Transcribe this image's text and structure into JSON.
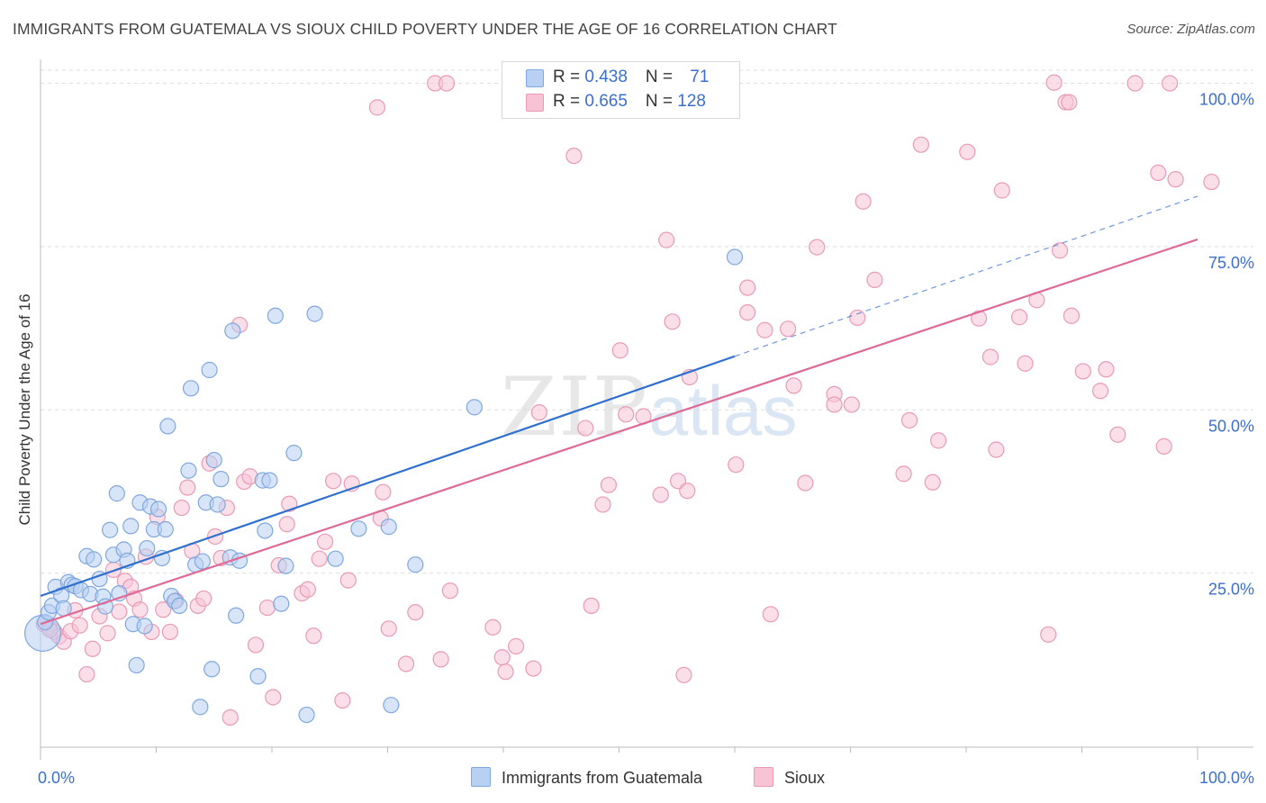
{
  "title": "IMMIGRANTS FROM GUATEMALA VS SIOUX CHILD POVERTY UNDER THE AGE OF 16 CORRELATION CHART",
  "source": "Source: ZipAtlas.com",
  "watermark": {
    "part1": "ZIP",
    "part2": "atlas"
  },
  "legend": {
    "rows": [
      {
        "r_label": "R = ",
        "r_value": "0.438",
        "n_label": "N = ",
        "n_value": "71"
      },
      {
        "r_label": "R = ",
        "r_value": "0.665",
        "n_label": "N = ",
        "n_value": "128"
      }
    ]
  },
  "colors": {
    "series1_fill": "#b8d0f2",
    "series1_stroke": "#7fa8e0",
    "series1_line": "#2f6fcf",
    "series2_fill": "#f8c4d5",
    "series2_stroke": "#e99ab4",
    "series2_line": "#e06a96",
    "tick_label": "#3a6fd0",
    "grid": "#dddddd"
  },
  "chart_data": {
    "type": "scatter",
    "title": "IMMIGRANTS FROM GUATEMALA VS SIOUX CHILD POVERTY UNDER THE AGE OF 16 CORRELATION CHART",
    "xlabel": "",
    "ylabel": "Child Poverty Under the Age of 16",
    "xlim": [
      0,
      100
    ],
    "ylim": [
      0,
      102
    ],
    "x_tick_labels": [
      "0.0%",
      "100.0%"
    ],
    "y_tick_labels": [
      "25.0%",
      "50.0%",
      "75.0%",
      "100.0%"
    ],
    "y_ticks": [
      25,
      50,
      75,
      100
    ],
    "grid": true,
    "legend_position": "bottom",
    "series": [
      {
        "name": "Immigrants from Guatemala",
        "R": 0.438,
        "N": 71,
        "trend": {
          "x": [
            0,
            60
          ],
          "y": [
            21.5,
            58.2
          ]
        },
        "trend_extended": {
          "x": [
            60,
            100
          ],
          "y": [
            58.2,
            82.7
          ]
        },
        "points": [
          {
            "x": 0.2,
            "y": 15.8,
            "big": true
          },
          {
            "x": 0.4,
            "y": 17.5
          },
          {
            "x": 0.7,
            "y": 19.0
          },
          {
            "x": 1.0,
            "y": 20.0
          },
          {
            "x": 1.3,
            "y": 22.9
          },
          {
            "x": 1.8,
            "y": 21.6
          },
          {
            "x": 2.0,
            "y": 19.6
          },
          {
            "x": 2.4,
            "y": 23.6
          },
          {
            "x": 2.7,
            "y": 23.2
          },
          {
            "x": 3.0,
            "y": 23.0
          },
          {
            "x": 3.5,
            "y": 22.4
          },
          {
            "x": 4.0,
            "y": 27.6
          },
          {
            "x": 4.3,
            "y": 21.8
          },
          {
            "x": 4.6,
            "y": 27.1
          },
          {
            "x": 5.1,
            "y": 24.1
          },
          {
            "x": 5.4,
            "y": 21.4
          },
          {
            "x": 5.6,
            "y": 19.9
          },
          {
            "x": 6.0,
            "y": 31.6
          },
          {
            "x": 6.3,
            "y": 27.8
          },
          {
            "x": 6.6,
            "y": 37.2
          },
          {
            "x": 6.8,
            "y": 21.9
          },
          {
            "x": 7.2,
            "y": 28.6
          },
          {
            "x": 7.5,
            "y": 26.9
          },
          {
            "x": 7.8,
            "y": 32.2
          },
          {
            "x": 8.0,
            "y": 17.2
          },
          {
            "x": 8.3,
            "y": 10.9
          },
          {
            "x": 8.6,
            "y": 35.8
          },
          {
            "x": 9.0,
            "y": 16.9
          },
          {
            "x": 9.2,
            "y": 28.8
          },
          {
            "x": 9.5,
            "y": 35.2
          },
          {
            "x": 9.8,
            "y": 31.7
          },
          {
            "x": 10.2,
            "y": 34.8
          },
          {
            "x": 10.5,
            "y": 27.3
          },
          {
            "x": 10.8,
            "y": 31.7
          },
          {
            "x": 11.0,
            "y": 47.5
          },
          {
            "x": 11.3,
            "y": 21.5
          },
          {
            "x": 11.6,
            "y": 20.7
          },
          {
            "x": 12.0,
            "y": 20.0
          },
          {
            "x": 12.8,
            "y": 40.7
          },
          {
            "x": 13.0,
            "y": 53.3
          },
          {
            "x": 13.4,
            "y": 26.3
          },
          {
            "x": 13.8,
            "y": 4.5
          },
          {
            "x": 14.0,
            "y": 26.8
          },
          {
            "x": 14.3,
            "y": 35.8
          },
          {
            "x": 14.6,
            "y": 56.1
          },
          {
            "x": 14.8,
            "y": 10.3
          },
          {
            "x": 15.0,
            "y": 42.3
          },
          {
            "x": 15.3,
            "y": 35.5
          },
          {
            "x": 15.6,
            "y": 39.4
          },
          {
            "x": 16.4,
            "y": 27.4
          },
          {
            "x": 16.6,
            "y": 62.1
          },
          {
            "x": 16.9,
            "y": 18.5
          },
          {
            "x": 17.2,
            "y": 26.9
          },
          {
            "x": 18.8,
            "y": 9.2
          },
          {
            "x": 19.2,
            "y": 39.2
          },
          {
            "x": 19.4,
            "y": 31.5
          },
          {
            "x": 19.8,
            "y": 39.2
          },
          {
            "x": 20.3,
            "y": 64.4
          },
          {
            "x": 20.8,
            "y": 20.3
          },
          {
            "x": 21.2,
            "y": 26.1
          },
          {
            "x": 21.9,
            "y": 43.4
          },
          {
            "x": 23.0,
            "y": 3.3
          },
          {
            "x": 23.7,
            "y": 64.7
          },
          {
            "x": 25.5,
            "y": 27.2
          },
          {
            "x": 27.5,
            "y": 31.8
          },
          {
            "x": 30.3,
            "y": 4.8
          },
          {
            "x": 32.4,
            "y": 26.3
          },
          {
            "x": 37.5,
            "y": 50.4
          },
          {
            "x": 44.5,
            "y": 101.2
          },
          {
            "x": 60.0,
            "y": 73.4
          },
          {
            "x": 30.1,
            "y": 32.1
          }
        ]
      },
      {
        "name": "Sioux",
        "R": 0.665,
        "N": 128,
        "trend": {
          "x": [
            0,
            100
          ],
          "y": [
            17.2,
            76.1
          ]
        },
        "points": [
          {
            "x": 0.3,
            "y": 17.2
          },
          {
            "x": 0.8,
            "y": 16.6
          },
          {
            "x": 1.2,
            "y": 16.0
          },
          {
            "x": 1.6,
            "y": 15.3
          },
          {
            "x": 2.0,
            "y": 14.5
          },
          {
            "x": 2.6,
            "y": 16.1
          },
          {
            "x": 3.0,
            "y": 19.3
          },
          {
            "x": 3.4,
            "y": 17.0
          },
          {
            "x": 4.0,
            "y": 9.5
          },
          {
            "x": 4.5,
            "y": 13.4
          },
          {
            "x": 5.1,
            "y": 18.4
          },
          {
            "x": 5.8,
            "y": 15.8
          },
          {
            "x": 6.3,
            "y": 25.5
          },
          {
            "x": 6.8,
            "y": 19.1
          },
          {
            "x": 7.3,
            "y": 23.8
          },
          {
            "x": 7.8,
            "y": 22.9
          },
          {
            "x": 8.1,
            "y": 21.1
          },
          {
            "x": 8.6,
            "y": 19.4
          },
          {
            "x": 9.1,
            "y": 27.5
          },
          {
            "x": 9.6,
            "y": 16.0
          },
          {
            "x": 10.1,
            "y": 33.6
          },
          {
            "x": 10.6,
            "y": 19.4
          },
          {
            "x": 11.2,
            "y": 16.0
          },
          {
            "x": 11.7,
            "y": 20.8
          },
          {
            "x": 12.2,
            "y": 35.0
          },
          {
            "x": 12.7,
            "y": 38.1
          },
          {
            "x": 13.1,
            "y": 28.4
          },
          {
            "x": 13.6,
            "y": 20.0
          },
          {
            "x": 14.1,
            "y": 21.1
          },
          {
            "x": 14.6,
            "y": 41.8
          },
          {
            "x": 15.1,
            "y": 30.6
          },
          {
            "x": 15.6,
            "y": 27.3
          },
          {
            "x": 16.1,
            "y": 35.0
          },
          {
            "x": 16.4,
            "y": 2.9
          },
          {
            "x": 17.2,
            "y": 63.0
          },
          {
            "x": 17.6,
            "y": 39.0
          },
          {
            "x": 18.1,
            "y": 39.8
          },
          {
            "x": 18.6,
            "y": 14.0
          },
          {
            "x": 19.6,
            "y": 19.7
          },
          {
            "x": 20.1,
            "y": 6.0
          },
          {
            "x": 20.6,
            "y": 26.2
          },
          {
            "x": 21.3,
            "y": 32.5
          },
          {
            "x": 21.5,
            "y": 35.6
          },
          {
            "x": 22.6,
            "y": 21.9
          },
          {
            "x": 23.1,
            "y": 22.5
          },
          {
            "x": 23.6,
            "y": 15.4
          },
          {
            "x": 24.1,
            "y": 27.2
          },
          {
            "x": 24.6,
            "y": 29.8
          },
          {
            "x": 25.3,
            "y": 39.1
          },
          {
            "x": 26.1,
            "y": 5.5
          },
          {
            "x": 26.6,
            "y": 23.9
          },
          {
            "x": 26.9,
            "y": 38.7
          },
          {
            "x": 29.4,
            "y": 33.4
          },
          {
            "x": 29.6,
            "y": 37.4
          },
          {
            "x": 29.1,
            "y": 96.3
          },
          {
            "x": 30.1,
            "y": 16.5
          },
          {
            "x": 31.6,
            "y": 11.1
          },
          {
            "x": 32.4,
            "y": 19.0
          },
          {
            "x": 34.1,
            "y": 100.0
          },
          {
            "x": 35.1,
            "y": 100.0
          },
          {
            "x": 34.6,
            "y": 11.8
          },
          {
            "x": 35.4,
            "y": 22.3
          },
          {
            "x": 39.1,
            "y": 16.7
          },
          {
            "x": 39.9,
            "y": 12.1
          },
          {
            "x": 40.2,
            "y": 9.9
          },
          {
            "x": 41.1,
            "y": 13.8
          },
          {
            "x": 42.6,
            "y": 10.4
          },
          {
            "x": 43.1,
            "y": 49.6
          },
          {
            "x": 46.1,
            "y": 88.9
          },
          {
            "x": 47.1,
            "y": 47.2
          },
          {
            "x": 47.6,
            "y": 20.0
          },
          {
            "x": 48.6,
            "y": 35.5
          },
          {
            "x": 49.1,
            "y": 38.5
          },
          {
            "x": 50.1,
            "y": 59.1
          },
          {
            "x": 50.6,
            "y": 49.3
          },
          {
            "x": 52.1,
            "y": 49.0
          },
          {
            "x": 53.6,
            "y": 37.0
          },
          {
            "x": 54.1,
            "y": 76.0
          },
          {
            "x": 54.6,
            "y": 63.5
          },
          {
            "x": 55.1,
            "y": 39.1
          },
          {
            "x": 55.9,
            "y": 37.6
          },
          {
            "x": 56.1,
            "y": 55.0
          },
          {
            "x": 55.6,
            "y": 9.4
          },
          {
            "x": 60.1,
            "y": 41.6
          },
          {
            "x": 61.1,
            "y": 64.9
          },
          {
            "x": 61.1,
            "y": 68.7
          },
          {
            "x": 62.6,
            "y": 62.2
          },
          {
            "x": 63.1,
            "y": 18.7
          },
          {
            "x": 64.6,
            "y": 62.4
          },
          {
            "x": 65.1,
            "y": 53.7
          },
          {
            "x": 66.1,
            "y": 38.8
          },
          {
            "x": 67.1,
            "y": 74.9
          },
          {
            "x": 68.6,
            "y": 52.4
          },
          {
            "x": 68.6,
            "y": 50.8
          },
          {
            "x": 70.1,
            "y": 50.8
          },
          {
            "x": 71.1,
            "y": 81.9
          },
          {
            "x": 70.6,
            "y": 64.1
          },
          {
            "x": 72.1,
            "y": 69.9
          },
          {
            "x": 74.6,
            "y": 40.2
          },
          {
            "x": 75.1,
            "y": 48.4
          },
          {
            "x": 76.1,
            "y": 90.6
          },
          {
            "x": 77.1,
            "y": 38.9
          },
          {
            "x": 77.6,
            "y": 45.3
          },
          {
            "x": 80.1,
            "y": 89.5
          },
          {
            "x": 81.1,
            "y": 64.0
          },
          {
            "x": 82.1,
            "y": 58.1
          },
          {
            "x": 82.6,
            "y": 43.9
          },
          {
            "x": 83.1,
            "y": 83.6
          },
          {
            "x": 84.6,
            "y": 64.2
          },
          {
            "x": 85.1,
            "y": 57.1
          },
          {
            "x": 86.1,
            "y": 66.8
          },
          {
            "x": 87.1,
            "y": 15.6
          },
          {
            "x": 87.6,
            "y": 100.1
          },
          {
            "x": 88.1,
            "y": 74.4
          },
          {
            "x": 88.6,
            "y": 97.1
          },
          {
            "x": 88.9,
            "y": 97.1
          },
          {
            "x": 89.1,
            "y": 64.4
          },
          {
            "x": 90.1,
            "y": 55.9
          },
          {
            "x": 91.6,
            "y": 52.9
          },
          {
            "x": 92.1,
            "y": 56.2
          },
          {
            "x": 93.1,
            "y": 46.2
          },
          {
            "x": 94.6,
            "y": 100.0
          },
          {
            "x": 96.6,
            "y": 86.3
          },
          {
            "x": 97.1,
            "y": 44.4
          },
          {
            "x": 97.6,
            "y": 100.0
          },
          {
            "x": 98.1,
            "y": 85.3
          },
          {
            "x": 101.2,
            "y": 84.9
          },
          {
            "x": 0.8,
            "y": 16.3
          }
        ]
      }
    ]
  }
}
